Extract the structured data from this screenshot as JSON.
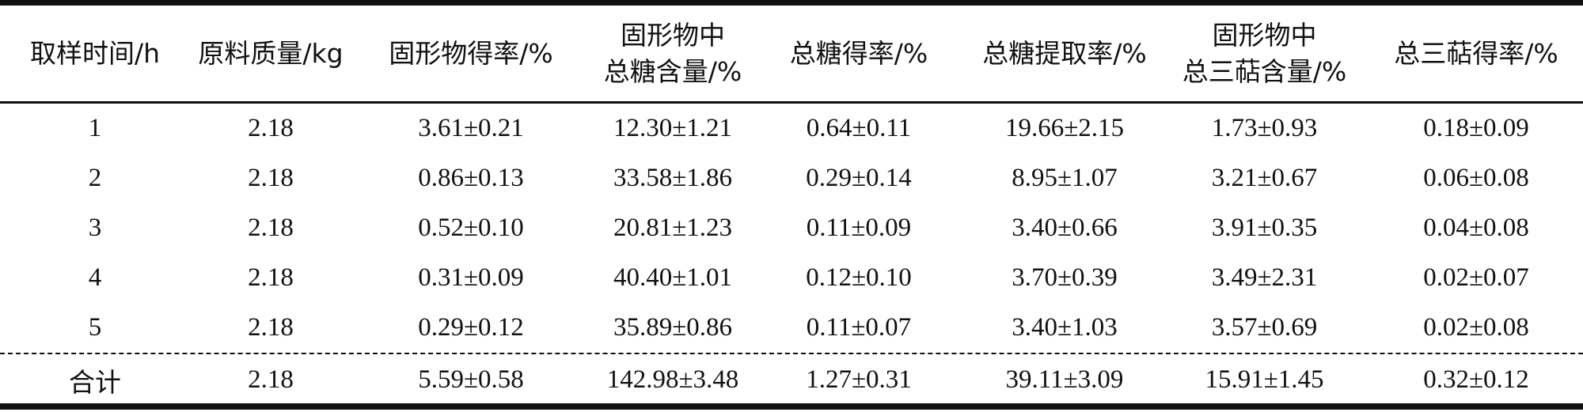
{
  "table": {
    "headers": [
      {
        "lines": [
          "取样时间/h"
        ]
      },
      {
        "lines": [
          "原料质量/kg"
        ]
      },
      {
        "lines": [
          "固形物得率/%"
        ]
      },
      {
        "lines": [
          "固形物中",
          "总糖含量/%"
        ]
      },
      {
        "lines": [
          "总糖得率/%"
        ]
      },
      {
        "lines": [
          "总糖提取率/%"
        ]
      },
      {
        "lines": [
          "固形物中",
          "总三萜含量/%"
        ]
      },
      {
        "lines": [
          "总三萜得率/%"
        ]
      }
    ],
    "rows": [
      [
        "1",
        "2.18",
        "3.61±0.21",
        "12.30±1.21",
        "0.64±0.11",
        "19.66±2.15",
        "1.73±0.93",
        "0.18±0.09"
      ],
      [
        "2",
        "2.18",
        "0.86±0.13",
        "33.58±1.86",
        "0.29±0.14",
        "8.95±1.07",
        "3.21±0.67",
        "0.06±0.08"
      ],
      [
        "3",
        "2.18",
        "0.52±0.10",
        "20.81±1.23",
        "0.11±0.09",
        "3.40±0.66",
        "3.91±0.35",
        "0.04±0.08"
      ],
      [
        "4",
        "2.18",
        "0.31±0.09",
        "40.40±1.01",
        "0.12±0.10",
        "3.70±0.39",
        "3.49±2.31",
        "0.02±0.07"
      ],
      [
        "5",
        "2.18",
        "0.29±0.12",
        "35.89±0.86",
        "0.11±0.07",
        "3.40±1.03",
        "3.57±0.69",
        "0.02±0.08"
      ]
    ],
    "total": [
      "合计",
      "2.18",
      "5.59±0.58",
      "142.98±3.48",
      "1.27±0.31",
      "39.11±3.09",
      "15.91±1.45",
      "0.32±0.12"
    ]
  }
}
